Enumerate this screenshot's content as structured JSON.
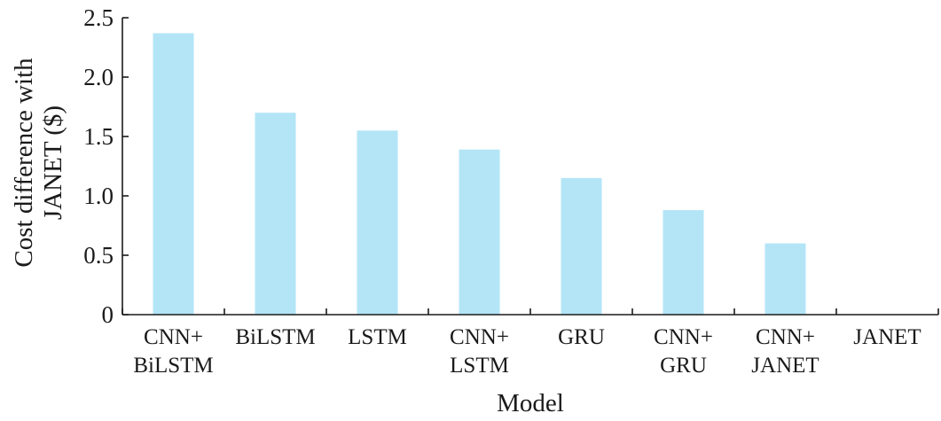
{
  "chart_data": {
    "type": "bar",
    "categories": [
      [
        "CNN+",
        "BiLSTM"
      ],
      [
        "BiLSTM"
      ],
      [
        "LSTM"
      ],
      [
        "CNN+",
        "LSTM"
      ],
      [
        "GRU"
      ],
      [
        "CNN+",
        "GRU"
      ],
      [
        "CNN+",
        "JANET"
      ],
      [
        "JANET"
      ]
    ],
    "values": [
      2.37,
      1.7,
      1.55,
      1.39,
      1.15,
      0.88,
      0.6,
      0
    ],
    "xlabel": "Model",
    "ylabel": [
      "Cost difference with",
      "JANET ($)"
    ],
    "ylim": [
      0,
      2.5
    ],
    "yticks": [
      "0",
      "0.5",
      "1.0",
      "1.5",
      "2.0",
      "2.5"
    ],
    "bar_color": "#b3e5f7",
    "grid": false,
    "legend": "none"
  }
}
